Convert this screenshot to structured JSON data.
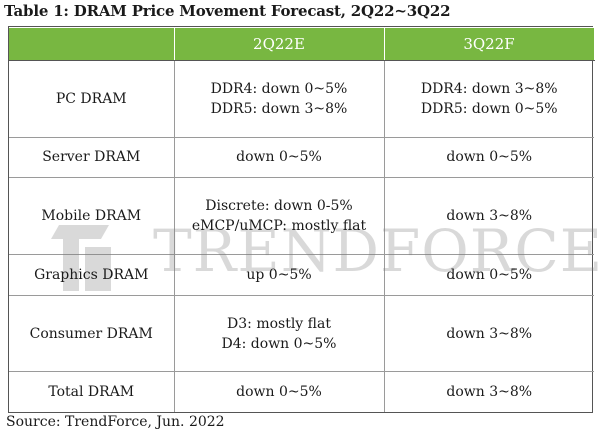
{
  "title": "Table 1: DRAM Price Movement Forecast, 2Q22~3Q22",
  "columns": [
    "",
    "2Q22E",
    "3Q22F"
  ],
  "rows": [
    {
      "label": "PC DRAM",
      "q2": [
        "DDR4: down 0~5%",
        "DDR5: down 3~8%"
      ],
      "q3": [
        "DDR4: down 3~8%",
        "DDR5: down 0~5%"
      ]
    },
    {
      "label": "Server DRAM",
      "q2": [
        "down 0~5%"
      ],
      "q3": [
        "down 0~5%"
      ]
    },
    {
      "label": "Mobile DRAM",
      "q2": [
        "Discrete: down 0-5%",
        "eMCP/uMCP: mostly flat"
      ],
      "q3": [
        "down 3~8%"
      ]
    },
    {
      "label": "Graphics DRAM",
      "q2": [
        "up 0~5%"
      ],
      "q3": [
        "down 0~5%"
      ]
    },
    {
      "label": "Consumer DRAM",
      "q2": [
        "D3: mostly flat",
        "D4: down 0~5%"
      ],
      "q3": [
        "down 3~8%"
      ]
    },
    {
      "label": "Total DRAM",
      "q2": [
        "down 0~5%"
      ],
      "q3": [
        "down 3~8%"
      ]
    }
  ],
  "watermark": "TRENDFORCE",
  "source": "Source: TrendForce, Jun. 2022",
  "colors": {
    "header_green": "#78b741",
    "watermark_gray": "#7a7a7a"
  }
}
